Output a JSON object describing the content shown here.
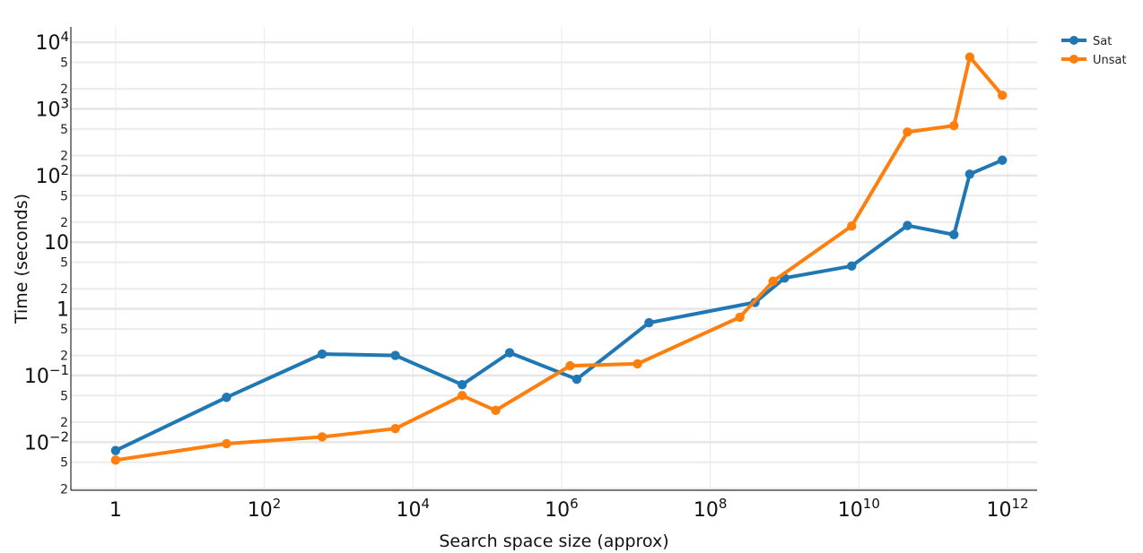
{
  "chart_data": {
    "type": "line",
    "xlabel": "Search space size (approx)",
    "ylabel": "Time (seconds)",
    "x_scale": "log",
    "y_scale": "log",
    "xlim": [
      0.25,
      2500000000000.0
    ],
    "ylim": [
      0.0019,
      17000
    ],
    "grid": true,
    "legend_position": "top-right",
    "x_ticks": [
      {
        "value": 1,
        "base": "1",
        "exp": ""
      },
      {
        "value": 100,
        "base": "10",
        "exp": "2"
      },
      {
        "value": 10000,
        "base": "10",
        "exp": "4"
      },
      {
        "value": 1000000,
        "base": "10",
        "exp": "6"
      },
      {
        "value": 100000000,
        "base": "10",
        "exp": "8"
      },
      {
        "value": 10000000000,
        "base": "10",
        "exp": "10"
      },
      {
        "value": 1000000000000,
        "base": "10",
        "exp": "12"
      }
    ],
    "y_major_ticks": [
      {
        "value": 0.01,
        "base": "10",
        "exp": "−2"
      },
      {
        "value": 0.1,
        "base": "10",
        "exp": "−1"
      },
      {
        "value": 1,
        "base": "1",
        "exp": ""
      },
      {
        "value": 10,
        "base": "10",
        "exp": ""
      },
      {
        "value": 100,
        "base": "10",
        "exp": "2"
      },
      {
        "value": 1000,
        "base": "10",
        "exp": "3"
      },
      {
        "value": 10000,
        "base": "10",
        "exp": "4"
      }
    ],
    "y_minor_ticks": [
      {
        "value": 0.002,
        "label": "2"
      },
      {
        "value": 0.005,
        "label": "5"
      },
      {
        "value": 0.02,
        "label": "2"
      },
      {
        "value": 0.05,
        "label": "5"
      },
      {
        "value": 0.2,
        "label": "2"
      },
      {
        "value": 0.5,
        "label": "5"
      },
      {
        "value": 2,
        "label": "2"
      },
      {
        "value": 5,
        "label": "5"
      },
      {
        "value": 20,
        "label": "2"
      },
      {
        "value": 50,
        "label": "5"
      },
      {
        "value": 200,
        "label": "2"
      },
      {
        "value": 500,
        "label": "5"
      },
      {
        "value": 2000,
        "label": "2"
      },
      {
        "value": 5000,
        "label": "5"
      }
    ],
    "series": [
      {
        "name": "Sat",
        "color": "#1f77b4",
        "points": [
          {
            "x": 1,
            "y": 0.0075
          },
          {
            "x": 31,
            "y": 0.047
          },
          {
            "x": 600,
            "y": 0.21
          },
          {
            "x": 5800,
            "y": 0.2
          },
          {
            "x": 46000,
            "y": 0.073
          },
          {
            "x": 200000,
            "y": 0.22
          },
          {
            "x": 1600000,
            "y": 0.088
          },
          {
            "x": 15000000,
            "y": 0.62
          },
          {
            "x": 400000000,
            "y": 1.25
          },
          {
            "x": 1000000000,
            "y": 2.9
          },
          {
            "x": 8000000000,
            "y": 4.4
          },
          {
            "x": 45000000000,
            "y": 17.8
          },
          {
            "x": 190000000000,
            "y": 13
          },
          {
            "x": 310000000000,
            "y": 105
          },
          {
            "x": 850000000000,
            "y": 170
          }
        ]
      },
      {
        "name": "Unsat",
        "color": "#ff7f0e",
        "points": [
          {
            "x": 1,
            "y": 0.0054
          },
          {
            "x": 31,
            "y": 0.0095
          },
          {
            "x": 600,
            "y": 0.012
          },
          {
            "x": 5800,
            "y": 0.016
          },
          {
            "x": 46000,
            "y": 0.05
          },
          {
            "x": 130000,
            "y": 0.03
          },
          {
            "x": 1300000,
            "y": 0.14
          },
          {
            "x": 10500000,
            "y": 0.15
          },
          {
            "x": 250000000,
            "y": 0.75
          },
          {
            "x": 700000000,
            "y": 2.6
          },
          {
            "x": 8000000000,
            "y": 17.5
          },
          {
            "x": 45000000000,
            "y": 450
          },
          {
            "x": 190000000000,
            "y": 560
          },
          {
            "x": 310000000000,
            "y": 6000
          },
          {
            "x": 850000000000,
            "y": 1600
          }
        ]
      }
    ]
  }
}
